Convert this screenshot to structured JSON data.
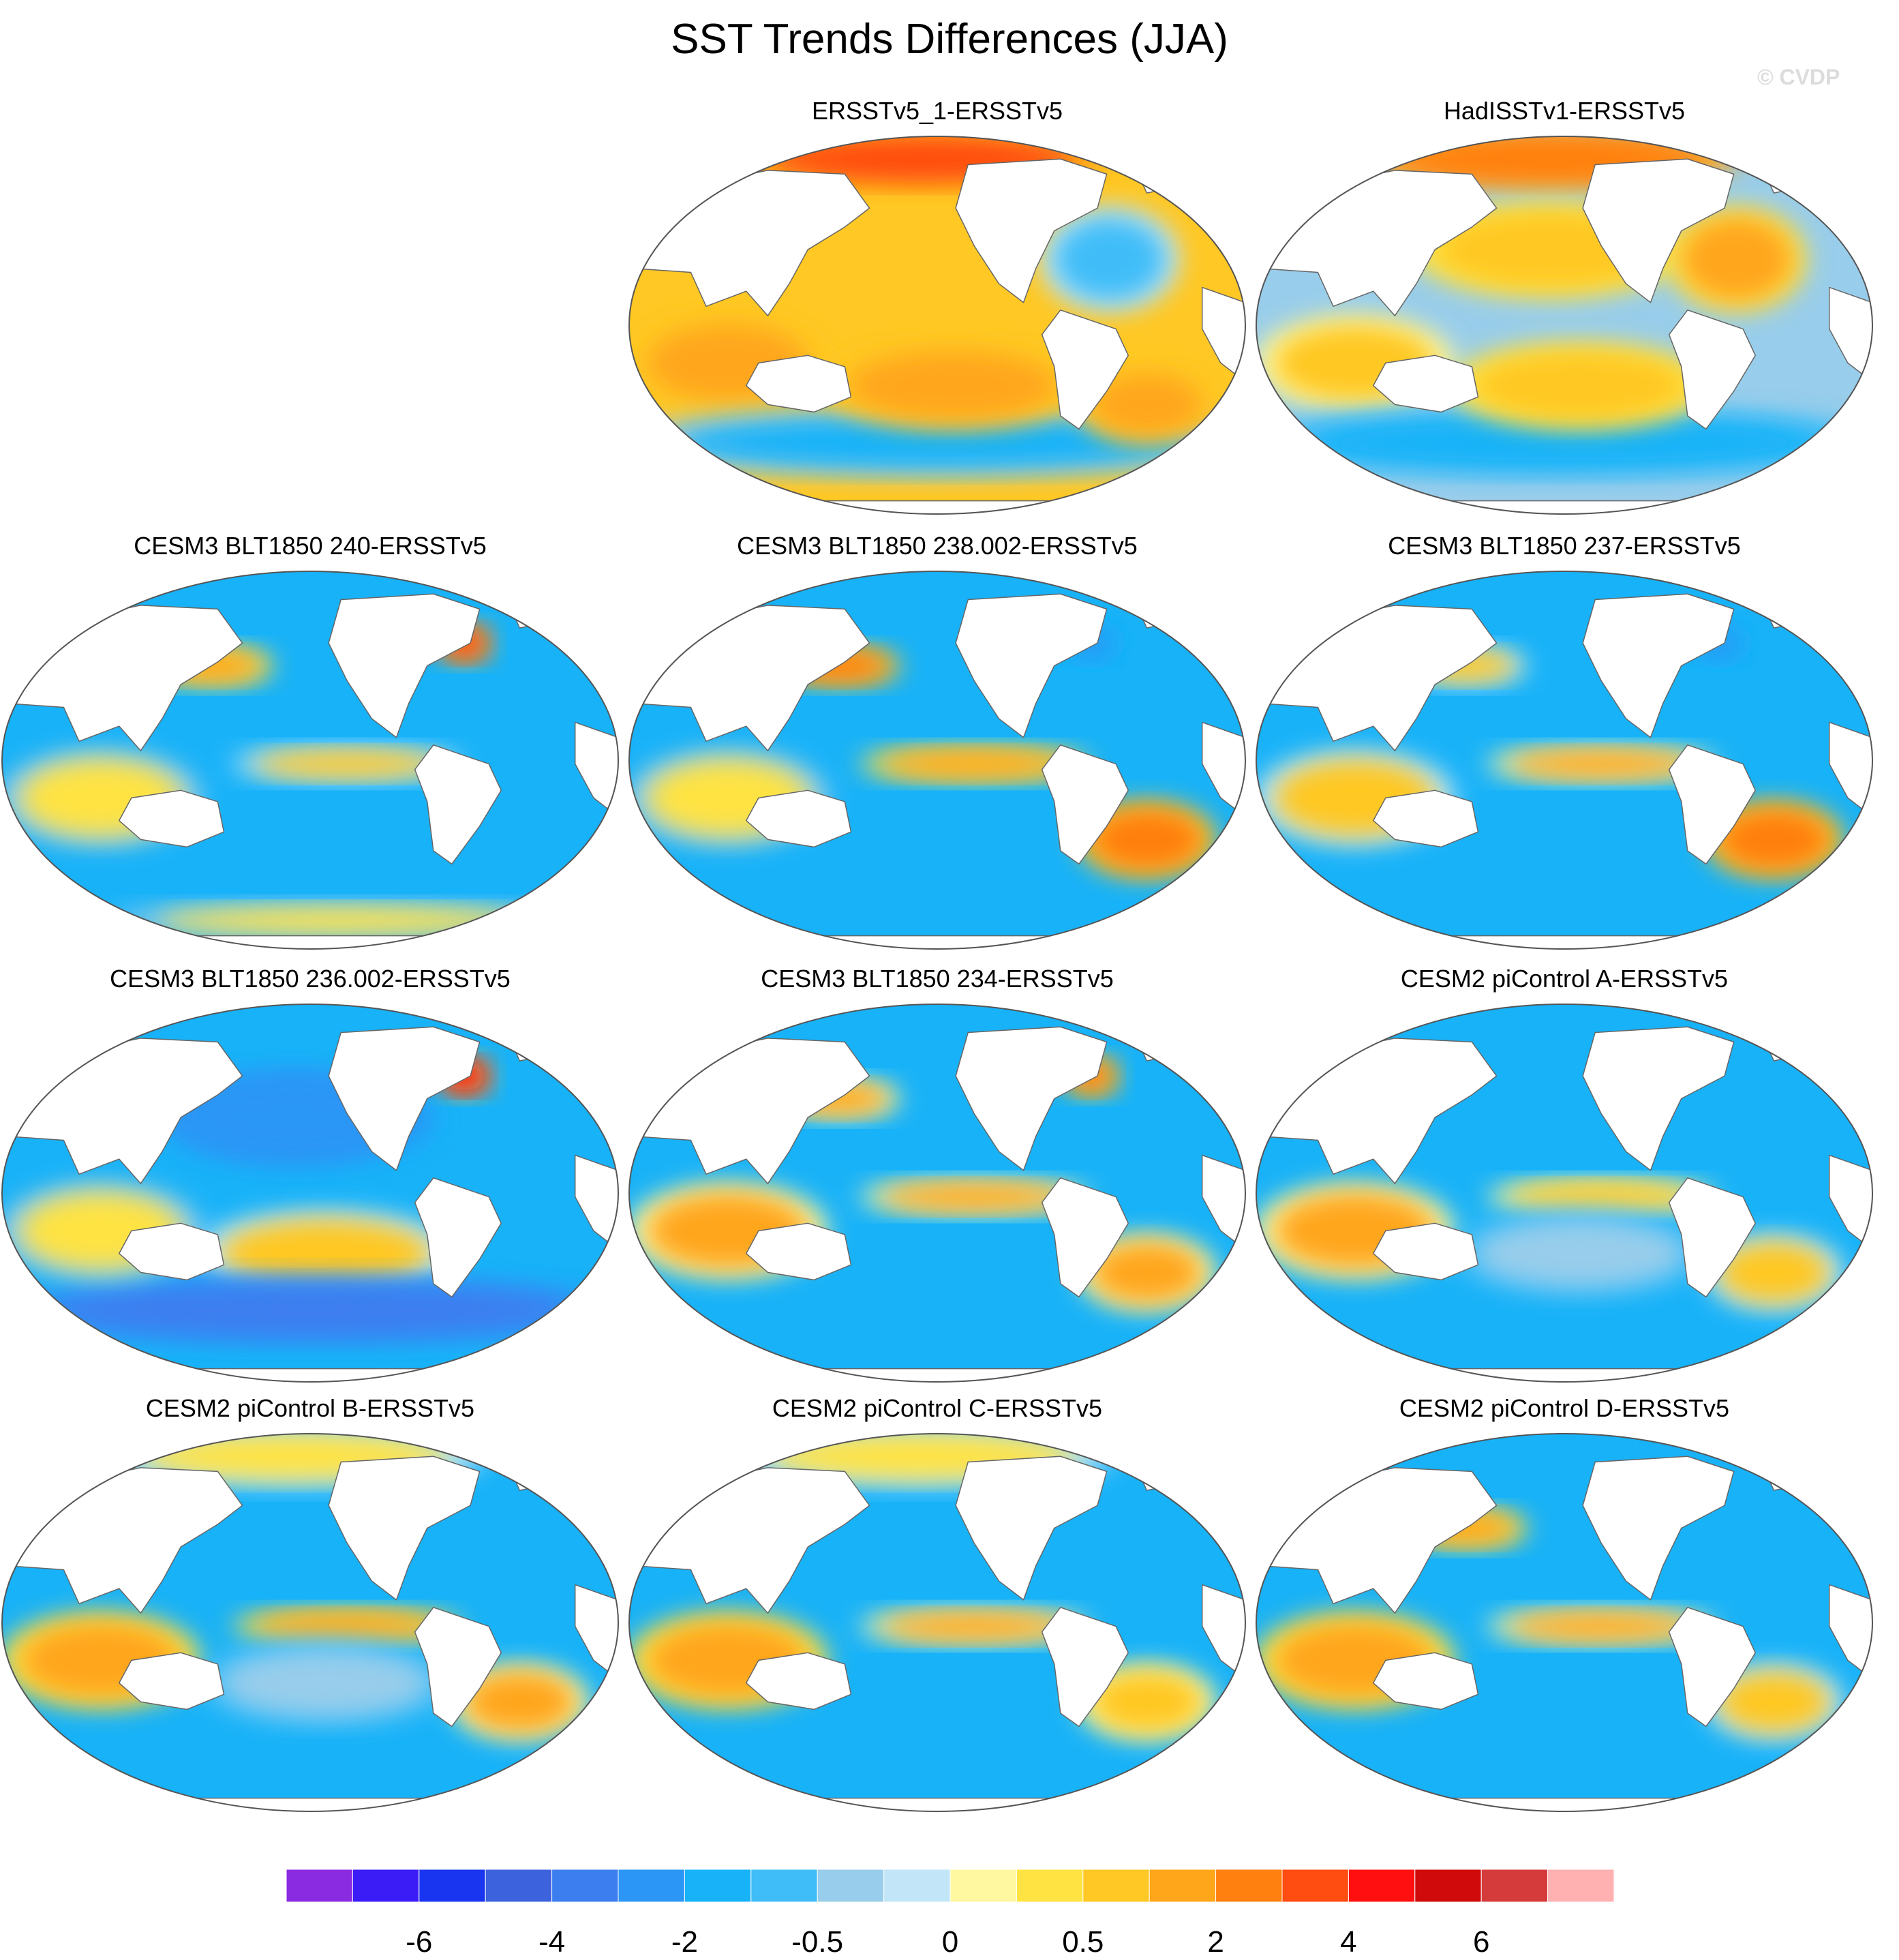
{
  "title": "SST Trends Differences (JJA)",
  "watermark": "© CVDP",
  "colors": {
    "land": "#ffffff",
    "outline": "#555555",
    "coast": "#666666"
  },
  "panels": [
    {
      "id": "p1",
      "title": "ERSSTv5_1-ERSSTv5",
      "base": 0.9,
      "anomalies": [
        {
          "region": "indian-ocean",
          "value": 1.2
        },
        {
          "region": "arctic",
          "value": 3.0
        },
        {
          "region": "north-atlantic",
          "value": -0.6
        },
        {
          "region": "southern-ocean",
          "value": -1.5
        },
        {
          "region": "south-pacific",
          "value": 1.3
        },
        {
          "region": "south-atlantic",
          "value": 1.4
        }
      ]
    },
    {
      "id": "p2",
      "title": "HadISSTv1-ERSSTv5",
      "base": -0.3,
      "anomalies": [
        {
          "region": "indian-ocean",
          "value": 0.6
        },
        {
          "region": "arctic",
          "value": 2.2
        },
        {
          "region": "north-pacific",
          "value": 0.7
        },
        {
          "region": "southern-ocean",
          "value": -1.4
        },
        {
          "region": "south-pacific",
          "value": 0.8
        },
        {
          "region": "north-atlantic",
          "value": 1.0
        }
      ]
    },
    {
      "id": "p3",
      "title": "CESM3 BLT1850 240-ERSSTv5",
      "base": -1.6,
      "anomalies": [
        {
          "region": "kuroshio",
          "value": 1.8
        },
        {
          "region": "gulf-stream",
          "value": 3.4
        },
        {
          "region": "equatorial-pacific",
          "value": 0.8
        },
        {
          "region": "indian-ocean",
          "value": 0.3
        },
        {
          "region": "antarctic-coast",
          "value": 0.4
        }
      ]
    },
    {
      "id": "p4",
      "title": "CESM3 BLT1850 238.002-ERSSTv5",
      "base": -1.5,
      "anomalies": [
        {
          "region": "kuroshio",
          "value": 2.0
        },
        {
          "region": "equatorial-pacific",
          "value": 1.6
        },
        {
          "region": "gulf-stream",
          "value": -3.0
        },
        {
          "region": "south-atlantic",
          "value": 2.6
        },
        {
          "region": "indian-ocean",
          "value": 0.3
        }
      ]
    },
    {
      "id": "p5",
      "title": "CESM3 BLT1850 237-ERSSTv5",
      "base": -1.5,
      "anomalies": [
        {
          "region": "equatorial-pacific",
          "value": 1.2
        },
        {
          "region": "gulf-stream",
          "value": -3.0
        },
        {
          "region": "indian-ocean",
          "value": 0.8
        },
        {
          "region": "south-atlantic",
          "value": 2.0
        },
        {
          "region": "kuroshio",
          "value": 0.6
        }
      ]
    },
    {
      "id": "p6",
      "title": "CESM3 BLT1850 236.002-ERSSTv5",
      "base": -1.8,
      "anomalies": [
        {
          "region": "gulf-stream",
          "value": 4.0
        },
        {
          "region": "north-pacific",
          "value": -3.0
        },
        {
          "region": "south-pacific",
          "value": 0.7
        },
        {
          "region": "southern-ocean",
          "value": -3.2
        },
        {
          "region": "indian-ocean",
          "value": 0.4
        }
      ]
    },
    {
      "id": "p7",
      "title": "CESM3 BLT1850 234-ERSSTv5",
      "base": -1.6,
      "anomalies": [
        {
          "region": "gulf-stream",
          "value": 2.6
        },
        {
          "region": "kuroshio",
          "value": 1.0
        },
        {
          "region": "equatorial-pacific",
          "value": 1.2
        },
        {
          "region": "indian-ocean",
          "value": 1.1
        },
        {
          "region": "south-atlantic",
          "value": 1.4
        }
      ]
    },
    {
      "id": "p8",
      "title": "CESM2 piControl A-ERSSTv5",
      "base": -1.5,
      "anomalies": [
        {
          "region": "indian-ocean",
          "value": 1.4
        },
        {
          "region": "equatorial-pacific",
          "value": 0.9
        },
        {
          "region": "south-atlantic",
          "value": 0.8
        },
        {
          "region": "south-pacific",
          "value": -0.4
        }
      ]
    },
    {
      "id": "p9",
      "title": "CESM2 piControl B-ERSSTv5",
      "base": -1.3,
      "anomalies": [
        {
          "region": "indian-ocean",
          "value": 1.6
        },
        {
          "region": "equatorial-pacific",
          "value": 1.3
        },
        {
          "region": "south-atlantic",
          "value": 1.0
        },
        {
          "region": "arctic",
          "value": 0.4
        },
        {
          "region": "south-pacific",
          "value": -0.5
        }
      ]
    },
    {
      "id": "p10",
      "title": "CESM2 piControl C-ERSSTv5",
      "base": -1.4,
      "anomalies": [
        {
          "region": "indian-ocean",
          "value": 1.6
        },
        {
          "region": "equatorial-pacific",
          "value": 1.0
        },
        {
          "region": "south-atlantic",
          "value": 0.9
        },
        {
          "region": "arctic",
          "value": 0.4
        }
      ]
    },
    {
      "id": "p11",
      "title": "CESM2 piControl D-ERSSTv5",
      "base": -1.4,
      "anomalies": [
        {
          "region": "indian-ocean",
          "value": 1.4
        },
        {
          "region": "equatorial-pacific",
          "value": 1.3
        },
        {
          "region": "kuroshio",
          "value": 1.6
        },
        {
          "region": "south-atlantic",
          "value": 0.5
        }
      ]
    }
  ],
  "colorbar": {
    "colors": [
      "#8a2be2",
      "#3b1cf7",
      "#1a35f0",
      "#3c62dd",
      "#3c7ef0",
      "#2b96f6",
      "#18b2f8",
      "#3fbdf8",
      "#98cdeb",
      "#c2e6f7",
      "#fff8a0",
      "#ffe342",
      "#ffc824",
      "#ffa61a",
      "#ff7f0f",
      "#ff4c10",
      "#ff0f0f",
      "#d00a0a",
      "#d63b3b",
      "#ffb1b1"
    ],
    "labels": [
      "-6",
      "-4",
      "-2",
      "-0.5",
      "0",
      "0.5",
      "2",
      "4",
      "6"
    ]
  }
}
